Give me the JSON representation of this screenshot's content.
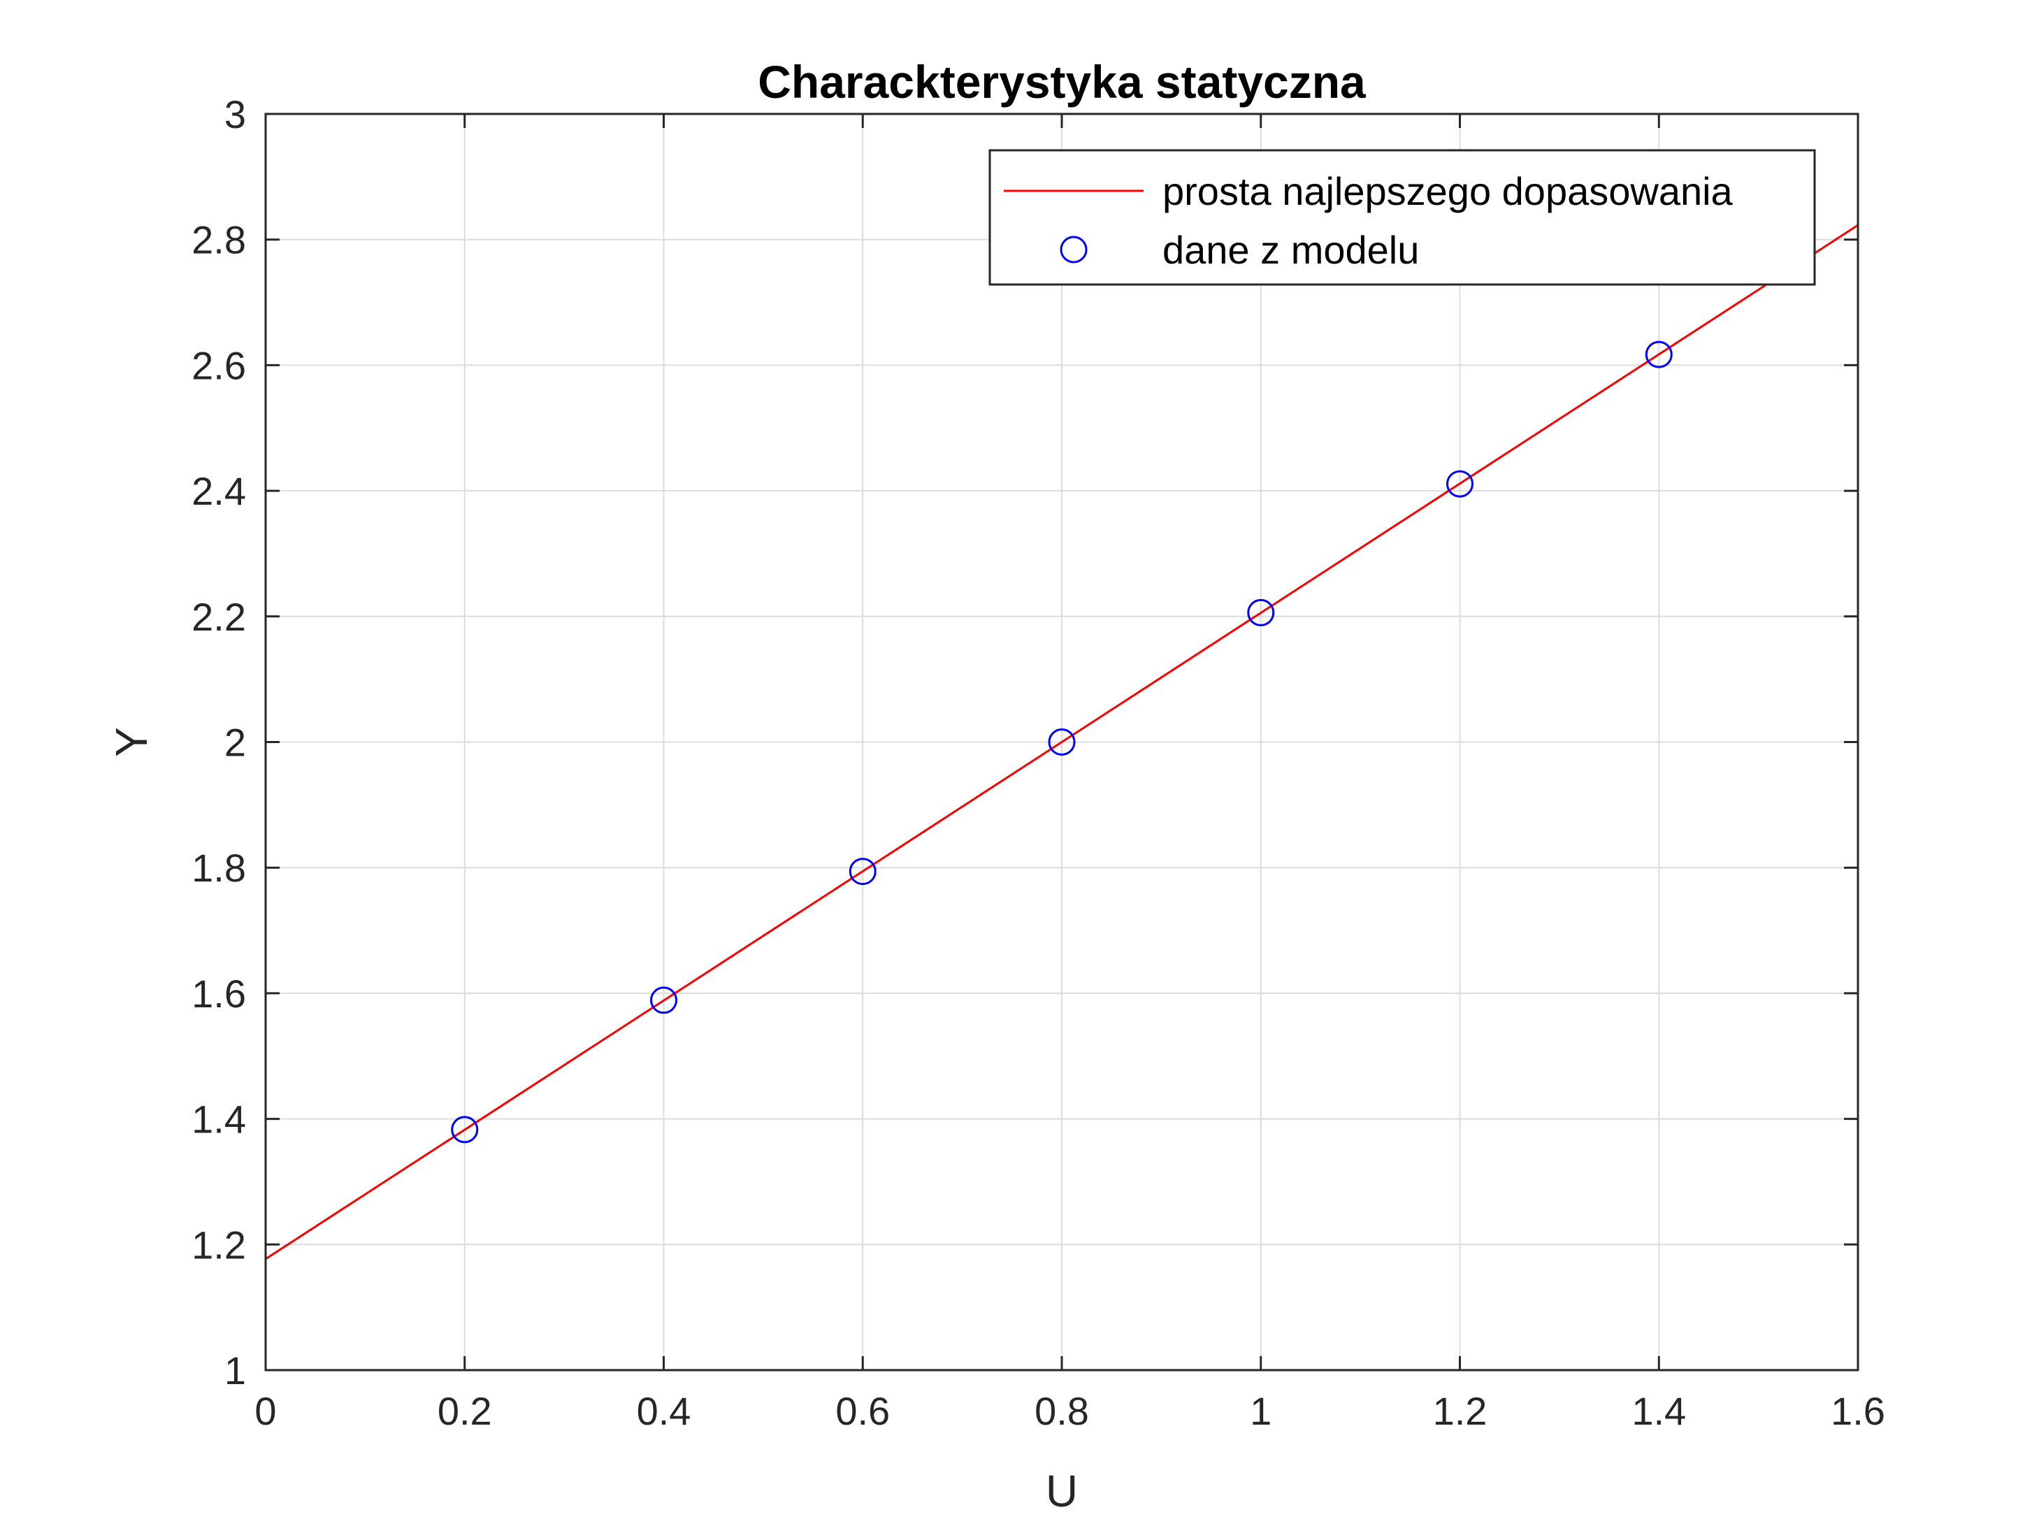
{
  "chart_data": {
    "type": "line",
    "title": "Charackterystyka statyczna",
    "xlabel": "U",
    "ylabel": "Y",
    "xlim": [
      0,
      1.6
    ],
    "ylim": [
      1,
      3
    ],
    "xticks": [
      "0",
      "0.2",
      "0.4",
      "0.6",
      "0.8",
      "1",
      "1.2",
      "1.4",
      "1.6"
    ],
    "yticks": [
      "1",
      "1.2",
      "1.4",
      "1.6",
      "1.8",
      "2",
      "2.2",
      "2.4",
      "2.6",
      "2.8",
      "3"
    ],
    "grid": true,
    "legend_position": "top-right",
    "series": [
      {
        "name": "prosta najlepszego dopasowania",
        "kind": "line",
        "color": "#ff0000",
        "x": [
          0,
          1.6
        ],
        "y": [
          1.177,
          2.823
        ]
      },
      {
        "name": "dane z modelu",
        "kind": "scatter",
        "marker": "circle",
        "color": "#0000ff",
        "x": [
          0.2,
          0.4,
          0.6,
          0.8,
          1.0,
          1.2,
          1.4
        ],
        "y": [
          1.383,
          1.589,
          1.794,
          2.0,
          2.206,
          2.411,
          2.617
        ]
      }
    ]
  }
}
